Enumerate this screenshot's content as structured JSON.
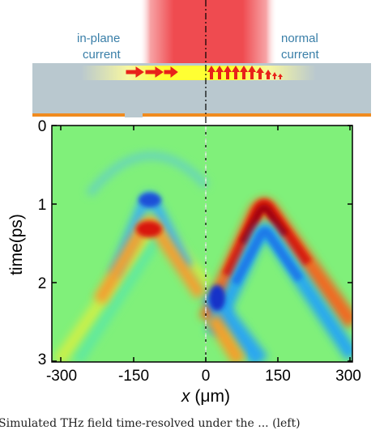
{
  "diagram": {
    "left_label_line1": "in-plane",
    "left_label_line2": "current",
    "right_label_line1": "normal",
    "right_label_line2": "current",
    "colors": {
      "beam": "#ef4b50",
      "substrate": "#b9c8cf",
      "active_layer": "#ffff33",
      "arrow": "#e8221a",
      "metal": "#f08b1f",
      "label": "#3a7fa8"
    }
  },
  "plot": {
    "y_label": "time(ps)",
    "x_label_var": "x",
    "x_label_unit": " (μm)",
    "x_ticks": [
      "-300",
      "-150",
      "0",
      "150",
      "300"
    ],
    "y_ticks": [
      "0",
      "1",
      "2",
      "3"
    ],
    "colormap": "jet"
  },
  "caption": "Simulated THz field time-resolved  under the ... (left)"
}
